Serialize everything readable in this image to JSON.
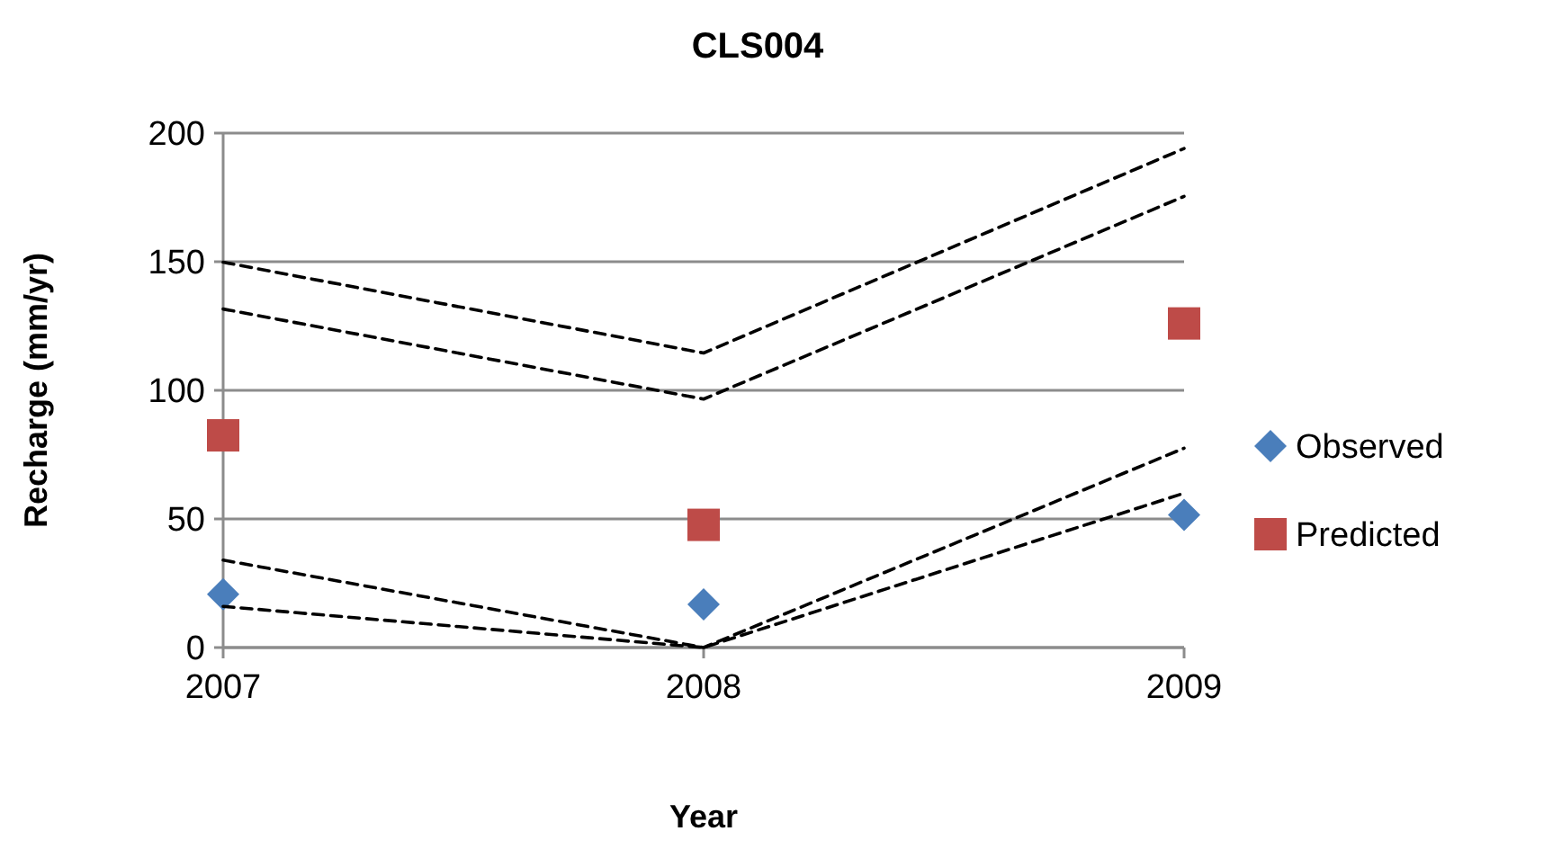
{
  "chart_data": {
    "type": "scatter",
    "title": "CLS004",
    "xlabel": "Year",
    "ylabel": "Recharge (mm/yr)",
    "categories": [
      "2007",
      "2008",
      "2009"
    ],
    "ylim": [
      0,
      200
    ],
    "yticks": [
      0,
      50,
      100,
      150,
      200
    ],
    "grid": "y",
    "legend": "right",
    "series": [
      {
        "name": "Observed",
        "color": "#4a7ebb",
        "marker": "diamond",
        "values": [
          20.7,
          16.8,
          51.6
        ]
      },
      {
        "name": "Predicted",
        "color": "#be4b48",
        "marker": "square",
        "values": [
          82.5,
          47.7,
          126
        ]
      },
      {
        "type": "line",
        "color": "#000000",
        "marker": "none",
        "line_style": "dashed",
        "values": [
          149.8,
          114.5,
          194
        ]
      },
      {
        "type": "line",
        "color": "#000000",
        "marker": "none",
        "line_style": "dashed",
        "values": [
          131.6,
          96.6,
          175.4
        ]
      },
      {
        "type": "line",
        "color": "#000000",
        "marker": "none",
        "line_style": "dashed",
        "values": [
          34,
          0,
          77.5
        ]
      },
      {
        "type": "line",
        "color": "#000000",
        "marker": "none",
        "line_style": "dashed",
        "values": [
          16,
          0,
          60
        ]
      }
    ]
  }
}
